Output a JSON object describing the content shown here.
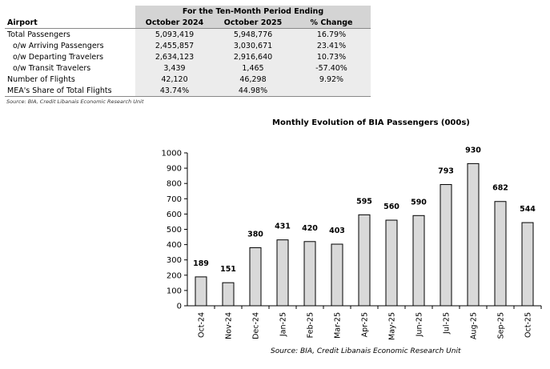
{
  "table": {
    "period_header": "For the Ten-Month Period Ending",
    "columns": [
      "Airport",
      "October 2024",
      "October 2025",
      "% Change"
    ],
    "rows": [
      {
        "label": "Total Passengers",
        "v1": "5,093,419",
        "v2": "5,948,776",
        "chg": "16.79%"
      },
      {
        "label": "o/w Arriving Passengers",
        "v1": "2,455,857",
        "v2": "3,030,671",
        "chg": "23.41%"
      },
      {
        "label": "o/w Departing Travelers",
        "v1": "2,634,123",
        "v2": "2,916,640",
        "chg": "10.73%"
      },
      {
        "label": "o/w Transit Travelers",
        "v1": "3,439",
        "v2": "1,465",
        "chg": "-57.40%"
      },
      {
        "label": "Number of Flights",
        "v1": "42,120",
        "v2": "46,298",
        "chg": "9.92%"
      },
      {
        "label": "MEA's Share of Total Flights",
        "v1": "43.74%",
        "v2": "44.98%",
        "chg": ""
      }
    ],
    "source": "Source: BIA, Credit Libanais Economic Research Unit"
  },
  "chart_data": {
    "type": "bar",
    "title": "Monthly Evolution of BIA Passengers (000s)",
    "categories": [
      "Oct-24",
      "Nov-24",
      "Dec-24",
      "Jan-25",
      "Feb-25",
      "Mar-25",
      "Apr-25",
      "May-25",
      "Jun-25",
      "Jul-25",
      "Aug-25",
      "Sep-25",
      "Oct-25"
    ],
    "values": [
      189,
      151,
      380,
      431,
      420,
      403,
      595,
      560,
      590,
      793,
      930,
      682,
      544
    ],
    "ylim": [
      0,
      1000
    ],
    "yticks": [
      0,
      100,
      200,
      300,
      400,
      500,
      600,
      700,
      800,
      900,
      1000
    ],
    "bar_color": "#d9d9d9",
    "source": "Source:  BIA, Credit Libanais Economic Research Unit"
  }
}
